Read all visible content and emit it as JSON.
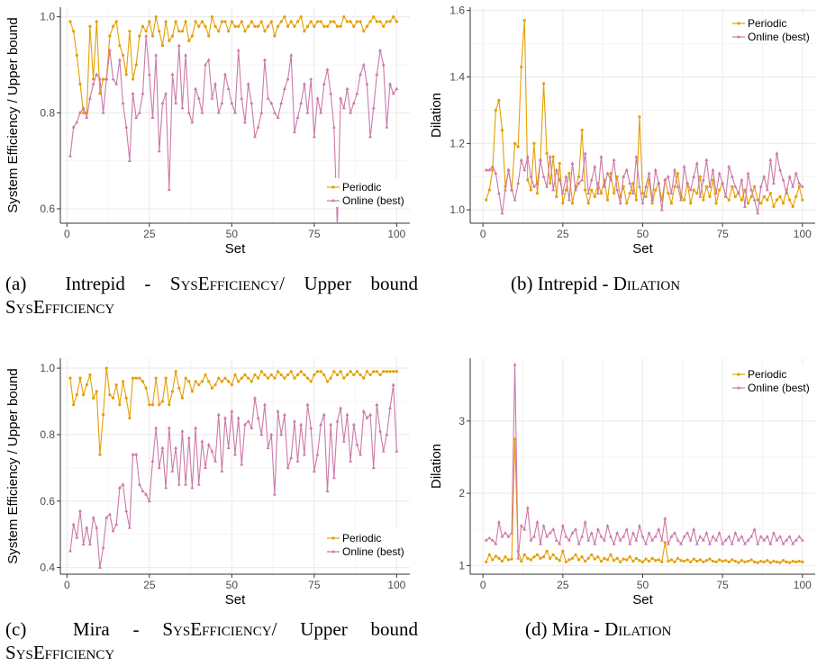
{
  "colors": {
    "periodic": "#E69F00",
    "online": "#CC79A7",
    "grid": "#ebebeb",
    "axis": "#333333"
  },
  "captions": {
    "a": {
      "label": "(a)",
      "text1": "Intrepid - ",
      "sc1": "SysEfficiency",
      "text2": "/ Upper bound ",
      "sc2": "SysEfficiency"
    },
    "b": {
      "label": "(b)",
      "text1": "Intrepid - ",
      "sc1": "Dilation"
    },
    "c": {
      "label": "(c)",
      "text1": "Mira - ",
      "sc1": "SysEfficiency",
      "text2": "/ Upper bound ",
      "sc2": "SysEfficiency"
    },
    "d": {
      "label": "(d)",
      "text1": "Mira - ",
      "sc1": "Dilation"
    }
  },
  "chart_data": [
    {
      "id": "a",
      "type": "line",
      "xlabel": "Set",
      "ylabel": "System Efficiency / Upper bound",
      "xlim": [
        -2,
        104
      ],
      "ylim": [
        0.57,
        1.02
      ],
      "xticks": [
        0,
        25,
        50,
        75,
        100
      ],
      "yticks": [
        0.6,
        0.8,
        1.0
      ],
      "ytick_labels": [
        "0.6",
        "0.8",
        "1.0"
      ],
      "legend_position": "bottom-right",
      "series": [
        {
          "name": "Periodic",
          "values": [
            0.99,
            0.97,
            0.92,
            0.86,
            0.8,
            0.8,
            0.98,
            0.87,
            0.99,
            0.84,
            0.87,
            0.87,
            0.96,
            0.98,
            0.99,
            0.94,
            0.92,
            0.88,
            0.97,
            0.87,
            0.9,
            0.96,
            0.98,
            0.97,
            0.99,
            0.96,
            1.0,
            0.97,
            0.94,
            0.99,
            0.95,
            0.96,
            0.99,
            0.97,
            0.97,
            0.99,
            0.95,
            0.96,
            0.99,
            0.98,
            0.99,
            0.98,
            0.96,
            1.0,
            0.98,
            0.97,
            0.99,
            0.99,
            0.97,
            0.99,
            0.98,
            0.98,
            0.99,
            0.97,
            0.98,
            0.99,
            0.98,
            0.98,
            0.99,
            0.97,
            0.98,
            0.99,
            0.96,
            0.98,
            0.99,
            1.0,
            0.98,
            0.99,
            0.98,
            0.99,
            1.0,
            0.97,
            0.98,
            0.99,
            0.98,
            0.99,
            0.99,
            0.98,
            0.98,
            0.99,
            0.99,
            0.98,
            0.98,
            1.0,
            0.99,
            0.99,
            0.98,
            0.99,
            0.99,
            0.97,
            0.98,
            0.99,
            1.0,
            0.99,
            0.99,
            0.98,
            0.99,
            0.99,
            1.0,
            0.99
          ]
        },
        {
          "name": "Online (best)",
          "values": [
            0.71,
            0.77,
            0.78,
            0.8,
            0.81,
            0.79,
            0.83,
            0.86,
            0.88,
            0.87,
            0.8,
            0.87,
            0.93,
            0.87,
            0.86,
            0.91,
            0.82,
            0.77,
            0.7,
            0.84,
            0.79,
            0.8,
            0.84,
            0.96,
            0.88,
            0.79,
            0.92,
            0.72,
            0.82,
            0.84,
            0.64,
            0.88,
            0.82,
            0.94,
            0.81,
            0.92,
            0.8,
            0.78,
            0.85,
            0.83,
            0.8,
            0.9,
            0.91,
            0.83,
            0.86,
            0.8,
            0.82,
            0.88,
            0.85,
            0.82,
            0.8,
            0.93,
            0.83,
            0.78,
            0.86,
            0.82,
            0.75,
            0.77,
            0.8,
            0.91,
            0.83,
            0.82,
            0.8,
            0.79,
            0.82,
            0.85,
            0.87,
            0.92,
            0.76,
            0.79,
            0.82,
            0.86,
            0.8,
            0.87,
            0.75,
            0.83,
            0.8,
            0.86,
            0.89,
            0.84,
            0.77,
            0.56,
            0.83,
            0.81,
            0.85,
            0.8,
            0.82,
            0.84,
            0.88,
            0.9,
            0.86,
            0.75,
            0.81,
            0.88,
            0.93,
            0.9,
            0.77,
            0.86,
            0.84,
            0.85
          ]
        }
      ]
    },
    {
      "id": "b",
      "type": "line",
      "xlabel": "Set",
      "ylabel": "Dilation",
      "xlim": [
        -4,
        104
      ],
      "ylim": [
        0.96,
        1.61
      ],
      "xticks": [
        0,
        25,
        50,
        75,
        100
      ],
      "yticks": [
        1.0,
        1.2,
        1.4,
        1.6
      ],
      "ytick_labels": [
        "1.0",
        "1.2",
        "1.4",
        "1.6"
      ],
      "legend_position": "top-right",
      "series": [
        {
          "name": "Periodic",
          "values": [
            1.03,
            1.06,
            1.12,
            1.3,
            1.33,
            1.24,
            1.07,
            1.12,
            1.06,
            1.2,
            1.19,
            1.43,
            1.57,
            1.09,
            1.06,
            1.2,
            1.05,
            1.15,
            1.38,
            1.17,
            1.08,
            1.16,
            1.04,
            1.14,
            1.02,
            1.06,
            1.11,
            1.02,
            1.07,
            1.1,
            1.24,
            1.06,
            1.02,
            1.06,
            1.04,
            1.08,
            1.05,
            1.09,
            1.03,
            1.11,
            1.05,
            1.1,
            1.04,
            1.07,
            1.02,
            1.05,
            1.08,
            1.03,
            1.28,
            1.05,
            1.04,
            1.09,
            1.02,
            1.06,
            1.08,
            1.03,
            1.09,
            1.05,
            1.02,
            1.07,
            1.11,
            1.04,
            1.03,
            1.08,
            1.02,
            1.06,
            1.05,
            1.1,
            1.03,
            1.07,
            1.04,
            1.09,
            1.02,
            1.06,
            1.08,
            1.04,
            1.03,
            1.07,
            1.04,
            1.05,
            1.03,
            1.06,
            1.02,
            1.04,
            1.07,
            1.03,
            1.02,
            1.04,
            1.03,
            1.05,
            1.01,
            1.03,
            1.04,
            1.02,
            1.06,
            1.03,
            1.01,
            1.04,
            1.07,
            1.03
          ]
        },
        {
          "name": "Online (best)",
          "values": [
            1.12,
            1.12,
            1.13,
            1.11,
            1.05,
            0.99,
            1.06,
            1.12,
            1.06,
            1.03,
            1.08,
            1.15,
            1.12,
            1.16,
            1.1,
            1.07,
            1.08,
            1.15,
            1.1,
            1.07,
            1.16,
            1.06,
            1.12,
            1.09,
            1.05,
            1.1,
            1.03,
            1.14,
            1.06,
            1.08,
            1.09,
            1.17,
            1.05,
            1.09,
            1.13,
            1.05,
            1.16,
            1.07,
            1.11,
            1.09,
            1.15,
            1.06,
            1.02,
            1.1,
            1.12,
            1.08,
            1.05,
            1.16,
            1.07,
            1.02,
            1.07,
            1.11,
            1.03,
            1.12,
            1.08,
            1.0,
            1.09,
            1.1,
            1.05,
            1.12,
            1.07,
            1.03,
            1.13,
            1.08,
            1.06,
            1.1,
            1.14,
            1.04,
            1.09,
            1.15,
            1.07,
            1.12,
            1.05,
            1.11,
            1.08,
            1.04,
            1.13,
            1.1,
            1.07,
            1.05,
            1.09,
            1.01,
            1.11,
            1.06,
            1.03,
            0.99,
            1.07,
            1.1,
            1.06,
            1.15,
            1.08,
            1.17,
            1.12,
            1.09,
            1.05,
            1.1,
            1.07,
            1.11,
            1.08,
            1.07
          ]
        }
      ]
    },
    {
      "id": "c",
      "type": "line",
      "xlabel": "Set",
      "ylabel": "System Efficiency / Upper bound",
      "xlim": [
        -2,
        104
      ],
      "ylim": [
        0.38,
        1.03
      ],
      "xticks": [
        0,
        25,
        50,
        75,
        100
      ],
      "yticks": [
        0.4,
        0.6,
        0.8,
        1.0
      ],
      "ytick_labels": [
        "0.4",
        "0.6",
        "0.8",
        "1.0"
      ],
      "legend_position": "bottom-right",
      "series": [
        {
          "name": "Periodic",
          "values": [
            0.97,
            0.89,
            0.92,
            0.97,
            0.92,
            0.95,
            0.98,
            0.91,
            0.93,
            0.74,
            0.86,
            1.0,
            0.92,
            0.91,
            0.95,
            0.89,
            0.96,
            0.91,
            0.85,
            0.97,
            0.97,
            0.97,
            0.96,
            0.94,
            0.89,
            0.89,
            0.97,
            0.89,
            0.9,
            0.97,
            0.89,
            0.93,
            0.99,
            0.94,
            0.91,
            0.97,
            0.96,
            0.93,
            0.96,
            0.95,
            0.96,
            0.98,
            0.96,
            0.94,
            0.95,
            0.97,
            0.96,
            0.97,
            0.96,
            0.95,
            0.98,
            0.96,
            0.97,
            0.98,
            0.97,
            0.96,
            0.98,
            0.97,
            0.99,
            0.98,
            0.97,
            0.98,
            0.97,
            0.99,
            0.98,
            0.97,
            0.98,
            0.99,
            0.97,
            0.98,
            0.99,
            0.98,
            0.97,
            0.96,
            0.98,
            0.99,
            0.99,
            0.98,
            0.96,
            0.97,
            0.99,
            0.98,
            0.99,
            0.97,
            0.98,
            0.99,
            0.98,
            0.99,
            0.98,
            0.97,
            0.99,
            0.98,
            0.99,
            0.99,
            0.98,
            0.99,
            0.99,
            0.99,
            0.99,
            0.99
          ]
        },
        {
          "name": "Online (best)",
          "values": [
            0.45,
            0.53,
            0.49,
            0.57,
            0.47,
            0.52,
            0.47,
            0.55,
            0.52,
            0.4,
            0.46,
            0.55,
            0.56,
            0.51,
            0.53,
            0.64,
            0.65,
            0.57,
            0.52,
            0.74,
            0.74,
            0.65,
            0.63,
            0.62,
            0.6,
            0.72,
            0.82,
            0.7,
            0.76,
            0.64,
            0.82,
            0.69,
            0.76,
            0.65,
            0.81,
            0.65,
            0.79,
            0.64,
            0.82,
            0.65,
            0.78,
            0.7,
            0.77,
            0.75,
            0.72,
            0.86,
            0.69,
            0.85,
            0.76,
            0.87,
            0.74,
            0.85,
            0.71,
            0.83,
            0.84,
            0.82,
            0.91,
            0.85,
            0.8,
            0.89,
            0.76,
            0.8,
            0.62,
            0.87,
            0.8,
            0.86,
            0.7,
            0.73,
            0.84,
            0.72,
            0.83,
            0.74,
            0.89,
            0.82,
            0.69,
            0.74,
            0.83,
            0.86,
            0.63,
            0.83,
            0.67,
            0.84,
            0.88,
            0.78,
            0.86,
            0.72,
            0.83,
            0.77,
            0.74,
            0.87,
            0.85,
            0.86,
            0.7,
            0.89,
            0.81,
            0.75,
            0.8,
            0.88,
            0.95,
            0.75
          ]
        }
      ]
    },
    {
      "id": "d",
      "type": "line",
      "xlabel": "Set",
      "ylabel": "Dilation",
      "xlim": [
        -4,
        104
      ],
      "ylim": [
        0.88,
        3.87
      ],
      "xticks": [
        0,
        25,
        50,
        75,
        100
      ],
      "yticks": [
        1,
        2,
        3
      ],
      "ytick_labels": [
        "1",
        "2",
        "3"
      ],
      "legend_position": "top-right",
      "series": [
        {
          "name": "Periodic",
          "values": [
            1.05,
            1.15,
            1.08,
            1.13,
            1.1,
            1.06,
            1.12,
            1.08,
            1.09,
            2.75,
            1.2,
            1.06,
            1.15,
            1.1,
            1.08,
            1.12,
            1.15,
            1.1,
            1.12,
            1.2,
            1.1,
            1.15,
            1.1,
            1.07,
            1.2,
            1.05,
            1.08,
            1.1,
            1.15,
            1.08,
            1.12,
            1.06,
            1.1,
            1.15,
            1.09,
            1.12,
            1.06,
            1.1,
            1.08,
            1.15,
            1.07,
            1.1,
            1.05,
            1.09,
            1.08,
            1.12,
            1.06,
            1.1,
            1.07,
            1.05,
            1.09,
            1.06,
            1.1,
            1.07,
            1.08,
            1.05,
            1.32,
            1.06,
            1.08,
            1.05,
            1.1,
            1.07,
            1.06,
            1.08,
            1.05,
            1.09,
            1.06,
            1.08,
            1.05,
            1.07,
            1.09,
            1.06,
            1.05,
            1.08,
            1.06,
            1.07,
            1.05,
            1.08,
            1.06,
            1.04,
            1.07,
            1.05,
            1.06,
            1.08,
            1.05,
            1.04,
            1.06,
            1.05,
            1.07,
            1.04,
            1.06,
            1.05,
            1.04,
            1.07,
            1.05,
            1.04,
            1.06,
            1.05,
            1.06,
            1.05
          ]
        },
        {
          "name": "Online (best)",
          "values": [
            1.35,
            1.38,
            1.35,
            1.3,
            1.6,
            1.4,
            1.45,
            1.4,
            1.45,
            3.78,
            1.1,
            1.55,
            1.5,
            1.8,
            1.35,
            1.4,
            1.6,
            1.3,
            1.55,
            1.4,
            1.45,
            1.5,
            1.35,
            1.3,
            1.55,
            1.4,
            1.35,
            1.45,
            1.5,
            1.3,
            1.4,
            1.6,
            1.35,
            1.45,
            1.3,
            1.5,
            1.4,
            1.35,
            1.55,
            1.4,
            1.3,
            1.45,
            1.35,
            1.4,
            1.5,
            1.3,
            1.45,
            1.35,
            1.55,
            1.4,
            1.3,
            1.45,
            1.35,
            1.4,
            1.5,
            1.35,
            1.65,
            1.3,
            1.4,
            1.45,
            1.35,
            1.3,
            1.4,
            1.45,
            1.35,
            1.5,
            1.3,
            1.4,
            1.35,
            1.45,
            1.3,
            1.4,
            1.35,
            1.45,
            1.3,
            1.35,
            1.4,
            1.3,
            1.45,
            1.35,
            1.4,
            1.3,
            1.35,
            1.4,
            1.5,
            1.3,
            1.4,
            1.35,
            1.4,
            1.3,
            1.45,
            1.35,
            1.4,
            1.3,
            1.35,
            1.4,
            1.3,
            1.35,
            1.4,
            1.35
          ]
        }
      ]
    }
  ]
}
